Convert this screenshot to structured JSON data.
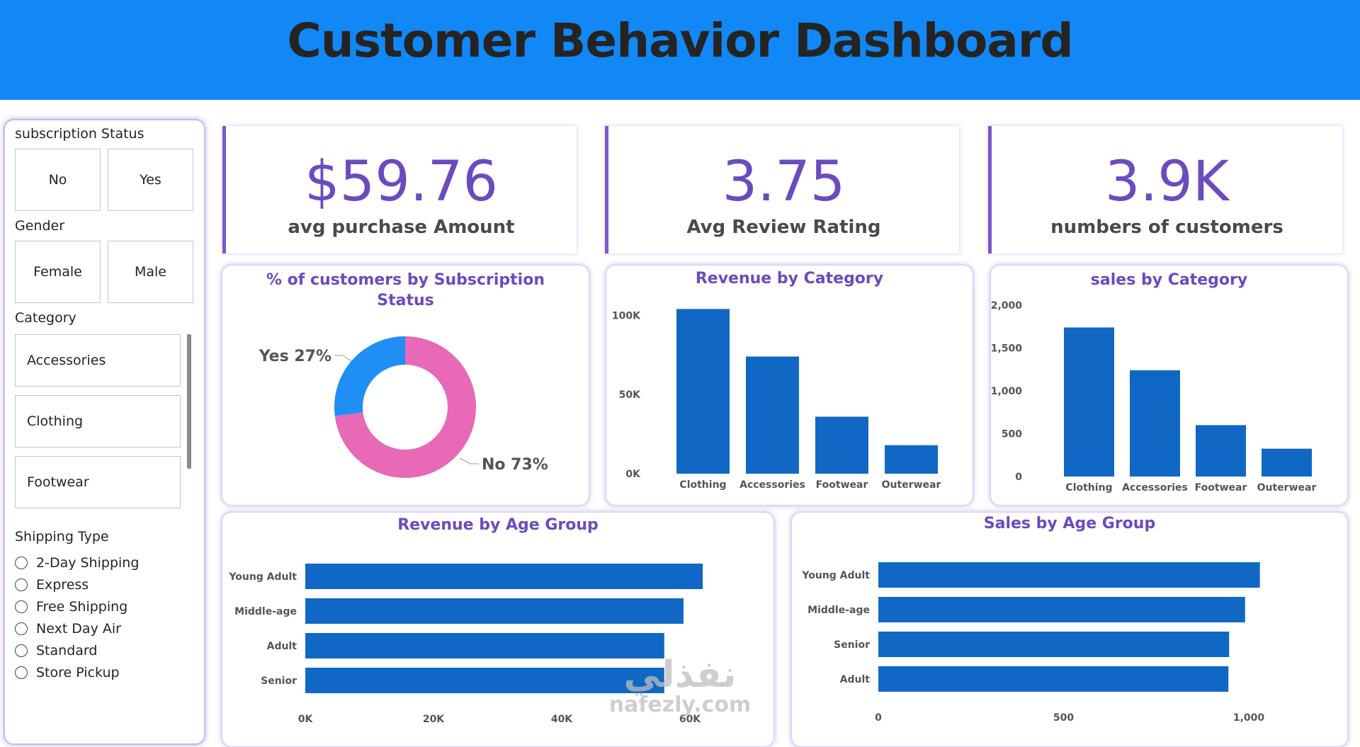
{
  "header": {
    "title": "Customer Behavior Dashboard"
  },
  "slicers": {
    "subscription": {
      "title": "subscription Status",
      "options": [
        "No",
        "Yes"
      ]
    },
    "gender": {
      "title": "Gender",
      "options": [
        "Female",
        "Male"
      ]
    },
    "category": {
      "title": "Category",
      "options": [
        "Accessories",
        "Clothing",
        "Footwear"
      ]
    },
    "shipping": {
      "title": "Shipping Type",
      "options": [
        "2-Day Shipping",
        "Express",
        "Free Shipping",
        "Next Day Air",
        "Standard",
        "Store Pickup"
      ]
    }
  },
  "kpis": [
    {
      "value": "$59.76",
      "label": "avg purchase Amount"
    },
    {
      "value": "3.75",
      "label": "Avg Review Rating"
    },
    {
      "value": "3.9K",
      "label": "numbers of customers"
    }
  ],
  "colors": {
    "accent": "#6b4bbf",
    "bar": "#1168c4",
    "donut_yes": "#1f8ef5",
    "donut_no": "#e869b6",
    "header": "#1188f5"
  },
  "chart_data": [
    {
      "type": "pie",
      "title": "% of customers by Subscription Status",
      "slices": [
        {
          "label": "Yes",
          "value": 27,
          "display": "Yes 27%"
        },
        {
          "label": "No",
          "value": 73,
          "display": "No 73%"
        }
      ]
    },
    {
      "type": "bar",
      "title": "Revenue by Category",
      "categories": [
        "Clothing",
        "Accessories",
        "Footwear",
        "Outerwear"
      ],
      "values": [
        104000,
        74000,
        36000,
        18000
      ],
      "yticks": [
        "0K",
        "50K",
        "100K"
      ],
      "ylim": [
        0,
        110000
      ]
    },
    {
      "type": "bar",
      "title": "sales by Category",
      "categories": [
        "Clothing",
        "Accessories",
        "Footwear",
        "Outerwear"
      ],
      "values": [
        1740,
        1240,
        600,
        325
      ],
      "yticks": [
        "0",
        "500",
        "1,000",
        "1,500",
        "2,000"
      ],
      "ylim": [
        0,
        2000
      ]
    },
    {
      "type": "bar",
      "orientation": "horizontal",
      "title": "Revenue by Age Group",
      "categories": [
        "Young Adult",
        "Middle-age",
        "Adult",
        "Senior"
      ],
      "values": [
        62000,
        59000,
        56000,
        56000
      ],
      "xticks": [
        "0K",
        "20K",
        "40K",
        "60K"
      ],
      "xlim": [
        0,
        60000
      ]
    },
    {
      "type": "bar",
      "orientation": "horizontal",
      "title": "Sales by Age Group",
      "categories": [
        "Young Adult",
        "Middle-age",
        "Senior",
        "Adult"
      ],
      "values": [
        1030,
        990,
        947,
        945
      ],
      "xticks": [
        "0",
        "500",
        "1,000"
      ],
      "xlim": [
        0,
        1000
      ]
    }
  ],
  "watermark": {
    "arabic": "نفذلي",
    "latin": "nafezly.com"
  }
}
